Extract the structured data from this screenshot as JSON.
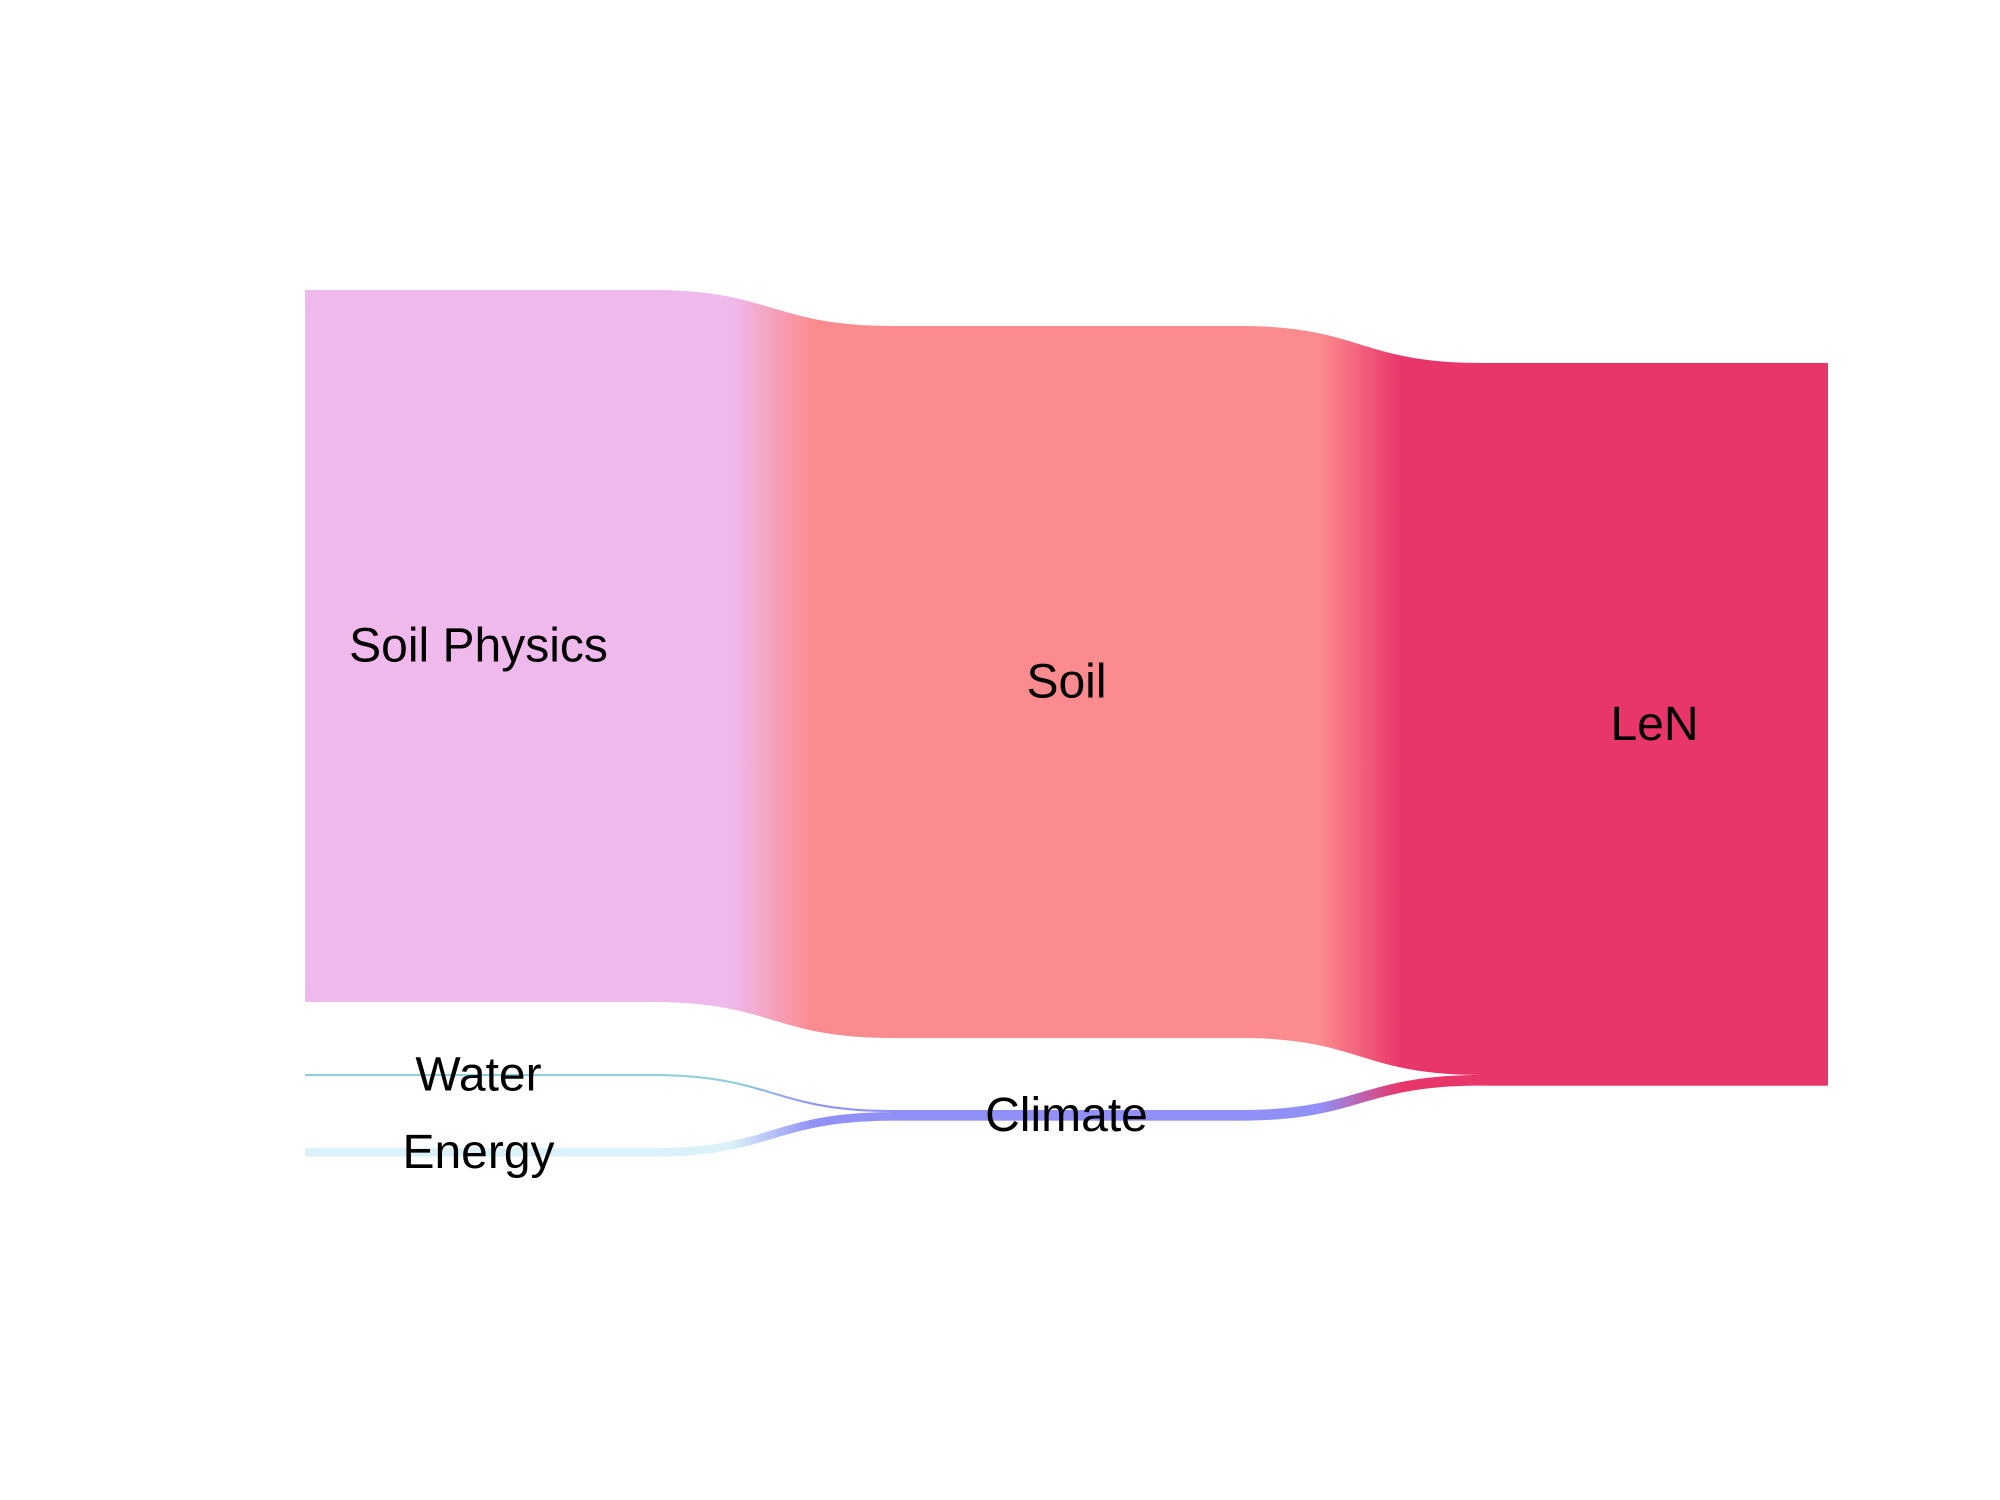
{
  "chart_data": {
    "type": "sankey",
    "nodes": [
      {
        "id": "soil_physics",
        "label": "Soil Physics",
        "column": 0,
        "value": 100,
        "color": "#EFB9EC"
      },
      {
        "id": "water",
        "label": "Water",
        "column": 0,
        "value": 0.3,
        "color": "#8FD0DC"
      },
      {
        "id": "energy",
        "label": "Energy",
        "column": 0,
        "value": 1.2,
        "color": "#DAF1F9"
      },
      {
        "id": "soil",
        "label": "Soil",
        "column": 1,
        "value": 100,
        "color": "#FC8B8F"
      },
      {
        "id": "climate",
        "label": "Climate",
        "column": 1,
        "value": 1.5,
        "color": "#9190F6"
      },
      {
        "id": "len",
        "label": "LeN",
        "column": 2,
        "value": 101.5,
        "color": "#E9366A"
      }
    ],
    "links": [
      {
        "source": "soil_physics",
        "target": "soil",
        "value": 100
      },
      {
        "source": "water",
        "target": "climate",
        "value": 0.3
      },
      {
        "source": "energy",
        "target": "climate",
        "value": 1.2
      },
      {
        "source": "soil",
        "target": "len",
        "value": 100
      },
      {
        "source": "climate",
        "target": "len",
        "value": 1.5
      }
    ]
  }
}
